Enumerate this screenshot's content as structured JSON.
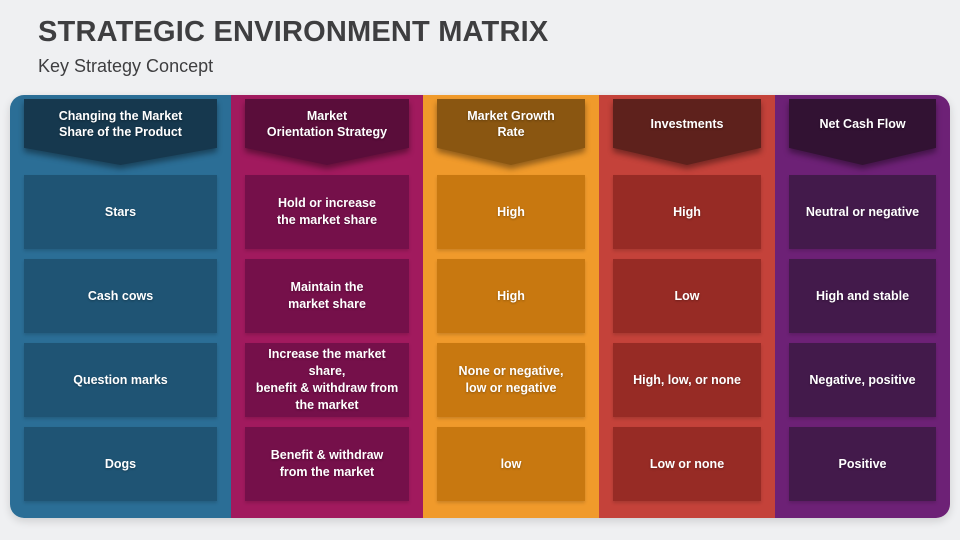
{
  "slide": {
    "title": "STRATEGIC ENVIRONMENT MATRIX",
    "subtitle": "Key Strategy Concept"
  },
  "matrix": {
    "row_labels_concept": [
      "Stars",
      "Cash cows",
      "Question marks",
      "Dogs"
    ],
    "columns": [
      {
        "header": "Changing the Market\nShare of the Product",
        "colors": {
          "bg": "#2B6E96",
          "cell": "#1F5474",
          "header": "#16384E"
        },
        "cells": [
          "Stars",
          "Cash cows",
          "Question marks",
          "Dogs"
        ]
      },
      {
        "header": "Market\nOrientation Strategy",
        "colors": {
          "bg": "#A11A5E",
          "cell": "#75104A",
          "header": "#5A0D3A"
        },
        "cells": [
          "Hold or increase\nthe market share",
          "Maintain the\nmarket share",
          "Increase the market share,\nbenefit & withdraw from\nthe market",
          "Benefit & withdraw\nfrom the market"
        ]
      },
      {
        "header": "Market Growth\nRate",
        "colors": {
          "bg": "#F09A2B",
          "cell": "#C87810",
          "header": "#8A5611"
        },
        "cells": [
          "High",
          "High",
          "None or negative,\nlow or negative",
          "low"
        ]
      },
      {
        "header": "Investments",
        "colors": {
          "bg": "#C4423A",
          "cell": "#972B25",
          "header": "#5E211C"
        },
        "cells": [
          "High",
          "Low",
          "High, low, or none",
          "Low or none"
        ]
      },
      {
        "header": "Net Cash Flow",
        "colors": {
          "bg": "#6D2176",
          "cell": "#431A4B",
          "header": "#321233"
        },
        "cells": [
          "Neutral or negative",
          "High and stable",
          "Negative, positive",
          "Positive"
        ]
      }
    ]
  }
}
